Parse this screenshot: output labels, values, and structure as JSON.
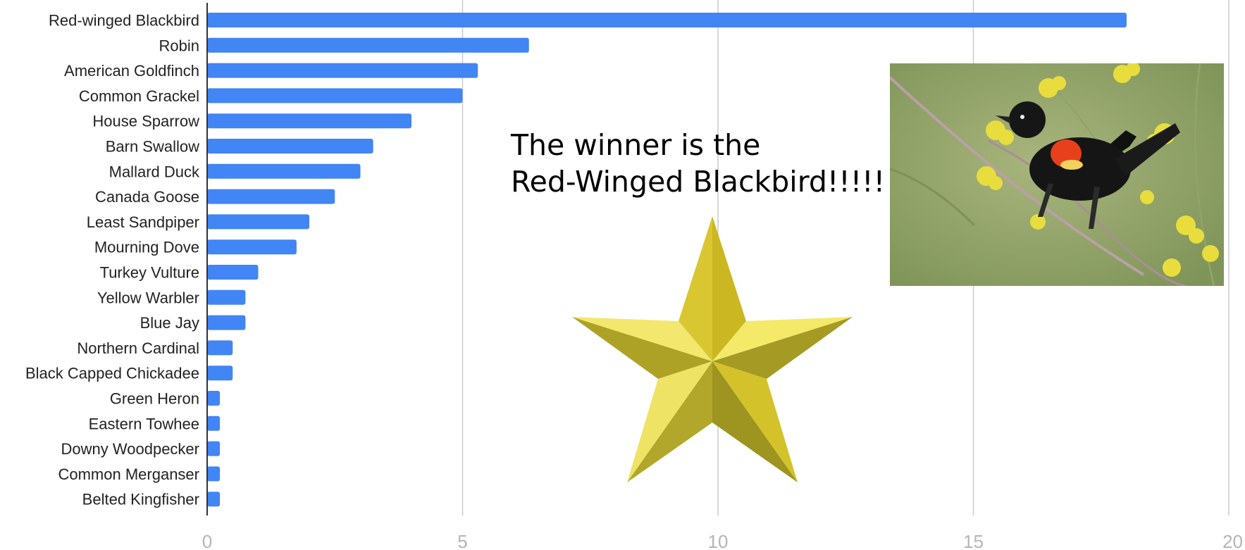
{
  "chart_data": {
    "type": "bar",
    "orientation": "horizontal",
    "title": "",
    "xlabel": "",
    "ylabel": "",
    "categories": [
      "Red-winged Blackbird",
      "Robin",
      "American Goldfinch",
      "Common Grackel",
      "House Sparrow",
      "Barn Swallow",
      "Mallard Duck",
      "Canada Goose",
      "Least Sandpiper",
      "Mourning Dove",
      "Turkey Vulture",
      "Yellow Warbler",
      "Blue Jay",
      "Northern Cardinal",
      "Black Capped Chickadee",
      "Green Heron",
      "Eastern Towhee",
      "Downy Woodpecker",
      "Common Merganser",
      "Belted Kingfisher"
    ],
    "values": [
      18,
      6.3,
      5.3,
      5,
      4,
      3.25,
      3,
      2.5,
      2,
      1.75,
      1,
      0.75,
      0.75,
      0.5,
      0.5,
      0.25,
      0.25,
      0.25,
      0.25,
      0.25
    ],
    "xlim": [
      0,
      20
    ],
    "xticks": [
      "0",
      "5",
      "10",
      "15",
      "20"
    ],
    "grid": true,
    "legend": "none",
    "bar_color": "#4285f4",
    "gridline_color": "#cccccc"
  },
  "annotation": {
    "line1": "The winner is the",
    "line2": "Red-Winged Blackbird!!!!!"
  },
  "decorations": {
    "star_color": "#e6d64a",
    "photo_subject": "red-winged-blackbird-photo"
  }
}
